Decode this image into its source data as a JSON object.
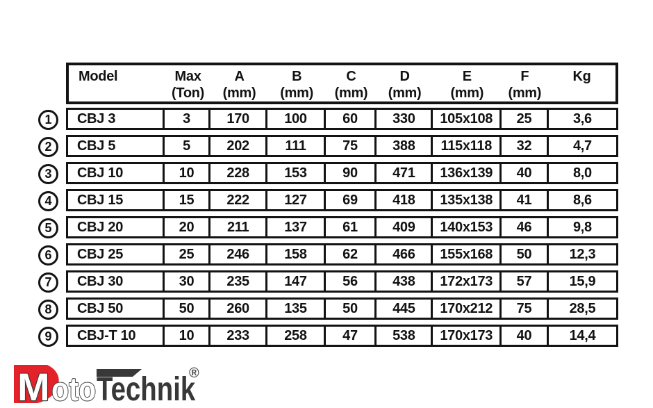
{
  "table": {
    "columns": [
      {
        "id": "model",
        "line1": "Model",
        "line2": ""
      },
      {
        "id": "max_ton",
        "line1": "Max",
        "line2": "(Ton)"
      },
      {
        "id": "a",
        "line1": "A",
        "line2": "(mm)"
      },
      {
        "id": "b",
        "line1": "B",
        "line2": "(mm)"
      },
      {
        "id": "c",
        "line1": "C",
        "line2": "(mm)"
      },
      {
        "id": "d",
        "line1": "D",
        "line2": "(mm)"
      },
      {
        "id": "e",
        "line1": "E",
        "line2": "(mm)"
      },
      {
        "id": "f",
        "line1": "F",
        "line2": "(mm)"
      },
      {
        "id": "kg",
        "line1": "Kg",
        "line2": ""
      }
    ],
    "rows": [
      {
        "index": "1",
        "model": "CBJ 3",
        "max_ton": "3",
        "a": "170",
        "b": "100",
        "c": "60",
        "d": "330",
        "e": "105x108",
        "f": "25",
        "kg": "3,6"
      },
      {
        "index": "2",
        "model": "CBJ 5",
        "max_ton": "5",
        "a": "202",
        "b": "111",
        "c": "75",
        "d": "388",
        "e": "115x118",
        "f": "32",
        "kg": "4,7"
      },
      {
        "index": "3",
        "model": "CBJ 10",
        "max_ton": "10",
        "a": "228",
        "b": "153",
        "c": "90",
        "d": "471",
        "e": "136x139",
        "f": "40",
        "kg": "8,0"
      },
      {
        "index": "4",
        "model": "CBJ 15",
        "max_ton": "15",
        "a": "222",
        "b": "127",
        "c": "69",
        "d": "418",
        "e": "135x138",
        "f": "41",
        "kg": "8,6"
      },
      {
        "index": "5",
        "model": "CBJ 20",
        "max_ton": "20",
        "a": "211",
        "b": "137",
        "c": "61",
        "d": "409",
        "e": "140x153",
        "f": "46",
        "kg": "9,8"
      },
      {
        "index": "6",
        "model": "CBJ 25",
        "max_ton": "25",
        "a": "246",
        "b": "158",
        "c": "62",
        "d": "466",
        "e": "155x168",
        "f": "50",
        "kg": "12,3"
      },
      {
        "index": "7",
        "model": "CBJ 30",
        "max_ton": "30",
        "a": "235",
        "b": "147",
        "c": "56",
        "d": "438",
        "e": "172x173",
        "f": "57",
        "kg": "15,9"
      },
      {
        "index": "8",
        "model": "CBJ 50",
        "max_ton": "50",
        "a": "260",
        "b": "135",
        "c": "50",
        "d": "445",
        "e": "170x212",
        "f": "75",
        "kg": "28,5"
      },
      {
        "index": "9",
        "model": "CBJ-T 10",
        "max_ton": "10",
        "a": "233",
        "b": "258",
        "c": "47",
        "d": "538",
        "e": "170x173",
        "f": "40",
        "kg": "14,4"
      }
    ]
  },
  "logo": {
    "m": "M",
    "oto": "oto",
    "technik": "Technik",
    "registered": "®"
  },
  "colors": {
    "accent_red": "#e4222a",
    "text_dark": "#3a3a3a",
    "border_black": "#131313"
  }
}
